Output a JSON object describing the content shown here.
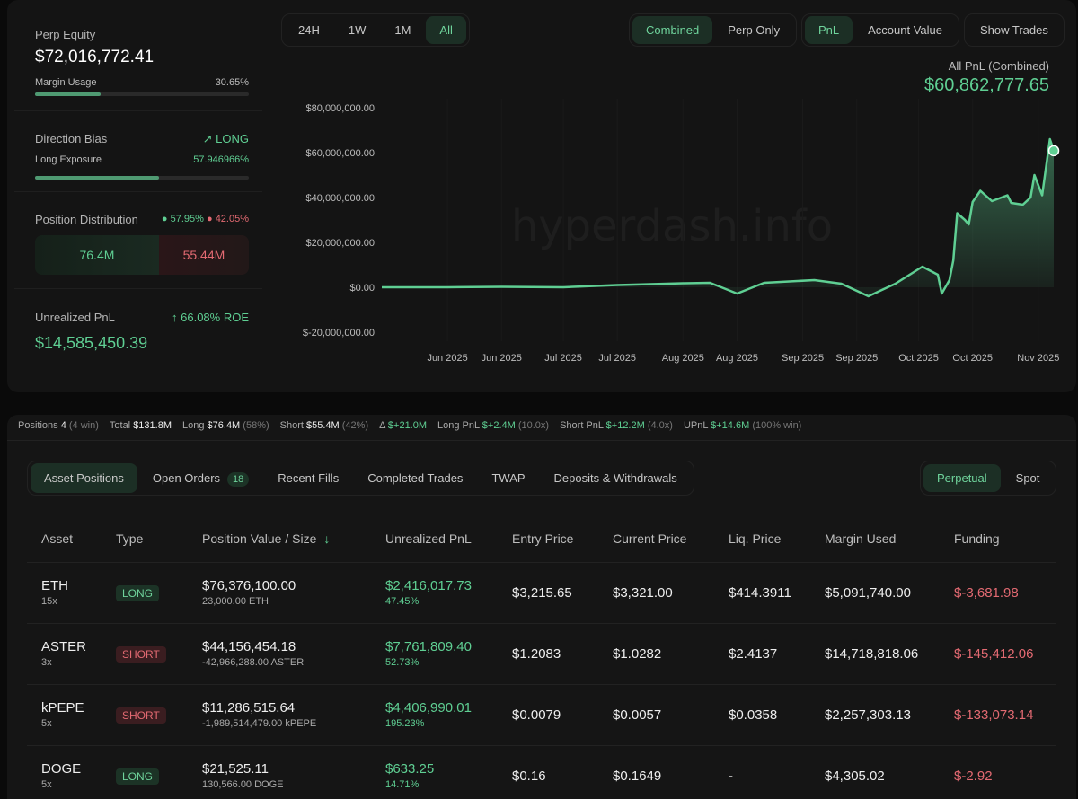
{
  "summary": {
    "perp_equity_label": "Perp Equity",
    "perp_equity": "$72,016,772.41",
    "margin_usage_label": "Margin Usage",
    "margin_usage": "30.65%",
    "margin_usage_pct": 30.65,
    "direction_bias_label": "Direction Bias",
    "direction_bias": "LONG",
    "long_exposure_label": "Long Exposure",
    "long_exposure": "57.946966%",
    "long_exposure_pct": 57.946966,
    "position_distribution_label": "Position Distribution",
    "long_pct": "57.95%",
    "short_pct": "42.05%",
    "long_value": "76.4M",
    "short_value": "55.44M",
    "upnl_label": "Unrealized PnL",
    "roe": "66.08% ROE",
    "upnl": "$14,585,450.39"
  },
  "controls": {
    "time_ranges": [
      "24H",
      "1W",
      "1M",
      "All"
    ],
    "time_selected": "All",
    "modes": [
      "Combined",
      "Perp Only"
    ],
    "mode_selected": "Combined",
    "metrics": [
      "PnL",
      "Account Value"
    ],
    "metric_selected": "PnL",
    "show_trades": "Show Trades"
  },
  "chart_data": {
    "type": "area",
    "title": "All PnL (Combined)",
    "headline_value": "$60,862,777.65",
    "watermark": "hyperdash.info",
    "ylim": [
      -20000000,
      80000000
    ],
    "y_ticks": [
      "$80,000,000.00",
      "$60,000,000.00",
      "$40,000,000.00",
      "$20,000,000.00",
      "$0.00",
      "$-20,000,000.00"
    ],
    "x_ticks": [
      {
        "label": "Jun 2025",
        "date": "2025-06-01"
      },
      {
        "label": "Jun 2025",
        "date": "2025-06-15"
      },
      {
        "label": "Jul 2025",
        "date": "2025-07-01"
      },
      {
        "label": "Jul 2025",
        "date": "2025-07-15"
      },
      {
        "label": "Aug 2025",
        "date": "2025-08-01"
      },
      {
        "label": "Aug 2025",
        "date": "2025-08-15"
      },
      {
        "label": "Sep 2025",
        "date": "2025-09-01"
      },
      {
        "label": "Sep 2025",
        "date": "2025-09-15"
      },
      {
        "label": "Oct 2025",
        "date": "2025-10-01"
      },
      {
        "label": "Oct 2025",
        "date": "2025-10-15"
      },
      {
        "label": "Nov 2025",
        "date": "2025-11-01"
      }
    ],
    "x_range": [
      "2025-05-15",
      "2025-11-05"
    ],
    "color": "#5fcf93",
    "points": [
      [
        "2025-05-15",
        0
      ],
      [
        "2025-06-01",
        0
      ],
      [
        "2025-06-15",
        200000
      ],
      [
        "2025-07-01",
        0
      ],
      [
        "2025-07-15",
        1000000
      ],
      [
        "2025-08-01",
        1800000
      ],
      [
        "2025-08-08",
        2000000
      ],
      [
        "2025-08-15",
        -2800000
      ],
      [
        "2025-08-22",
        2000000
      ],
      [
        "2025-09-04",
        3200000
      ],
      [
        "2025-09-11",
        1600000
      ],
      [
        "2025-09-18",
        -4000000
      ],
      [
        "2025-09-25",
        1600000
      ],
      [
        "2025-10-02",
        9200000
      ],
      [
        "2025-10-06",
        5600000
      ],
      [
        "2025-10-07",
        -2800000
      ],
      [
        "2025-10-09",
        3200000
      ],
      [
        "2025-10-10",
        12000000
      ],
      [
        "2025-10-11",
        33000000
      ],
      [
        "2025-10-13",
        30000000
      ],
      [
        "2025-10-14",
        28000000
      ],
      [
        "2025-10-15",
        38000000
      ],
      [
        "2025-10-17",
        43000000
      ],
      [
        "2025-10-20",
        38400000
      ],
      [
        "2025-10-24",
        41000000
      ],
      [
        "2025-10-25",
        37600000
      ],
      [
        "2025-10-28",
        36800000
      ],
      [
        "2025-10-30",
        40000000
      ],
      [
        "2025-10-31",
        50000000
      ],
      [
        "2025-11-02",
        41000000
      ],
      [
        "2025-11-04",
        66000000
      ],
      [
        "2025-11-05",
        60862777
      ]
    ]
  },
  "stats": [
    {
      "label": "Positions",
      "value": "4",
      "note": "(4 win)"
    },
    {
      "label": "Total",
      "value": "$131.8M",
      "note": ""
    },
    {
      "label": "Long",
      "value": "$76.4M",
      "note": "(58%)"
    },
    {
      "label": "Short",
      "value": "$55.4M",
      "note": "(42%)"
    },
    {
      "label": "Δ",
      "value": "$+21.0M",
      "note": "",
      "green": true
    },
    {
      "label": "Long PnL",
      "value": "$+2.4M",
      "note": "(10.0x)",
      "green": true
    },
    {
      "label": "Short PnL",
      "value": "$+12.2M",
      "note": "(4.0x)",
      "green": true
    },
    {
      "label": "UPnL",
      "value": "$+14.6M",
      "note": "(100% win)",
      "green": true
    }
  ],
  "tabs": [
    {
      "label": "Asset Positions",
      "active": true
    },
    {
      "label": "Open Orders",
      "badge": "18"
    },
    {
      "label": "Recent Fills"
    },
    {
      "label": "Completed Trades"
    },
    {
      "label": "TWAP"
    },
    {
      "label": "Deposits & Withdrawals"
    }
  ],
  "market_tabs": [
    "Perpetual",
    "Spot"
  ],
  "table": {
    "headers": [
      "Asset",
      "Type",
      "Position Value / Size",
      "Unrealized PnL",
      "Entry Price",
      "Current Price",
      "Liq. Price",
      "Margin Used",
      "Funding"
    ],
    "rows": [
      {
        "asset": "ETH",
        "lev": "15x",
        "type": "LONG",
        "value": "$76,376,100.00",
        "size": "23,000.00 ETH",
        "upnl": "$2,416,017.73",
        "upnl_pct": "47.45%",
        "entry": "$3,215.65",
        "current": "$3,321.00",
        "liq": "$414.3911",
        "margin": "$5,091,740.00",
        "funding": "$-3,681.98"
      },
      {
        "asset": "ASTER",
        "lev": "3x",
        "type": "SHORT",
        "value": "$44,156,454.18",
        "size": "-42,966,288.00 ASTER",
        "upnl": "$7,761,809.40",
        "upnl_pct": "52.73%",
        "entry": "$1.2083",
        "current": "$1.0282",
        "liq": "$2.4137",
        "margin": "$14,718,818.06",
        "funding": "$-145,412.06"
      },
      {
        "asset": "kPEPE",
        "lev": "5x",
        "type": "SHORT",
        "value": "$11,286,515.64",
        "size": "-1,989,514,479.00 kPEPE",
        "upnl": "$4,406,990.01",
        "upnl_pct": "195.23%",
        "entry": "$0.0079",
        "current": "$0.0057",
        "liq": "$0.0358",
        "margin": "$2,257,303.13",
        "funding": "$-133,073.14"
      },
      {
        "asset": "DOGE",
        "lev": "5x",
        "type": "LONG",
        "value": "$21,525.11",
        "size": "130,566.00 DOGE",
        "upnl": "$633.25",
        "upnl_pct": "14.71%",
        "entry": "$0.16",
        "current": "$0.1649",
        "liq": "-",
        "margin": "$4,305.02",
        "funding": "$-2.92"
      }
    ]
  }
}
